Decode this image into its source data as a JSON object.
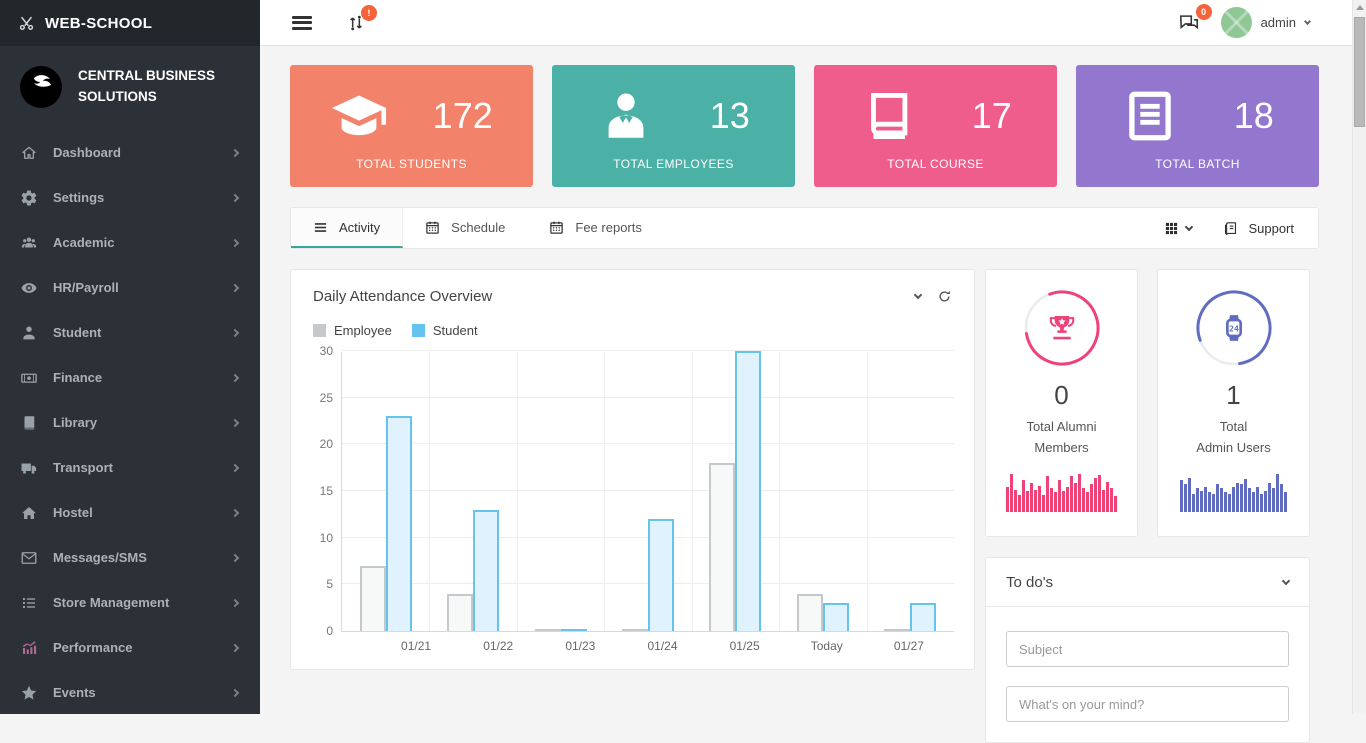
{
  "brand": {
    "name": "WEB-SCHOOL"
  },
  "profile": {
    "org_line1": "CENTRAL BUSINESS",
    "org_line2": "SOLUTIONS"
  },
  "topbar": {
    "sync_badge": "!",
    "chat_badge": "0",
    "user_name": "admin"
  },
  "sidebar": {
    "items": [
      {
        "label": "Dashboard",
        "icon": "home-icon"
      },
      {
        "label": "Settings",
        "icon": "gear-icon"
      },
      {
        "label": "Academic",
        "icon": "users-icon"
      },
      {
        "label": "HR/Payroll",
        "icon": "eye-icon"
      },
      {
        "label": "Student",
        "icon": "person-icon"
      },
      {
        "label": "Finance",
        "icon": "cash-icon"
      },
      {
        "label": "Library",
        "icon": "book-icon"
      },
      {
        "label": "Transport",
        "icon": "truck-icon"
      },
      {
        "label": "Hostel",
        "icon": "house-icon"
      },
      {
        "label": "Messages/SMS",
        "icon": "envelope-icon"
      },
      {
        "label": "Store Management",
        "icon": "list-icon"
      },
      {
        "label": "Performance",
        "icon": "performance-chart-icon"
      },
      {
        "label": "Events",
        "icon": "star-icon"
      }
    ]
  },
  "stats": [
    {
      "value": "172",
      "label": "TOTAL STUDENTS",
      "color": "#f3826b",
      "icon": "graduation-cap-icon"
    },
    {
      "value": "13",
      "label": "TOTAL EMPLOYEES",
      "color": "#4bb0a5",
      "icon": "employee-icon"
    },
    {
      "value": "17",
      "label": "TOTAL COURSE",
      "color": "#ef5d8d",
      "icon": "course-book-icon"
    },
    {
      "value": "18",
      "label": "TOTAL BATCH",
      "color": "#9376ce",
      "icon": "batch-doc-icon"
    }
  ],
  "tabs": {
    "items": [
      {
        "label": "Activity",
        "icon": "menu-lines-icon",
        "active": true
      },
      {
        "label": "Schedule",
        "icon": "calendar-icon",
        "active": false
      },
      {
        "label": "Fee reports",
        "icon": "calendar-icon",
        "active": false
      }
    ],
    "support_label": "Support"
  },
  "chart_card": {
    "title": "Daily Attendance Overview"
  },
  "chart_data": {
    "type": "bar",
    "title": "Daily Attendance Overview",
    "categories": [
      "01/21",
      "01/22",
      "01/23",
      "01/24",
      "01/25",
      "Today",
      "01/27"
    ],
    "series": [
      {
        "name": "Employee",
        "values": [
          7,
          4,
          0,
          0,
          18,
          4,
          0
        ],
        "fill": "#f7f8f8",
        "border": "#c5c9cc"
      },
      {
        "name": "Student",
        "values": [
          23,
          13,
          0,
          12,
          30,
          3,
          3
        ],
        "fill": "#e0f2fd",
        "border": "#66c3f0"
      }
    ],
    "ylim": [
      0,
      30
    ],
    "yticks": [
      0,
      5,
      10,
      15,
      20,
      25,
      30
    ],
    "grid": true,
    "legend_position": "top-left"
  },
  "widgets": [
    {
      "name": "total-alumni-members",
      "value": "0",
      "label_line1": "Total Alumni",
      "label_line2": "Members",
      "accent": "#ee4379",
      "icon": "trophy-icon",
      "ring_rotation": -110,
      "spark": [
        62,
        95,
        55,
        42,
        78,
        52,
        72,
        55,
        65,
        42,
        88,
        60,
        48,
        80,
        52,
        62,
        90,
        72,
        95,
        58,
        48,
        68,
        85,
        92,
        55,
        75,
        60,
        38
      ]
    },
    {
      "name": "total-admin-users",
      "value": "1",
      "label_line1": "Total",
      "label_line2": "Admin Users",
      "accent": "#5f6cbf",
      "icon": "smartwatch-icon",
      "ring_rotation": 160,
      "spark": [
        78,
        68,
        85,
        45,
        58,
        52,
        62,
        48,
        44,
        68,
        58,
        48,
        44,
        62,
        72,
        68,
        82,
        58,
        48,
        62,
        44,
        52,
        72,
        58,
        95,
        68,
        48
      ]
    }
  ],
  "todos": {
    "title": "To do's",
    "subject_placeholder": "Subject",
    "message_placeholder": "What's on your mind?"
  }
}
